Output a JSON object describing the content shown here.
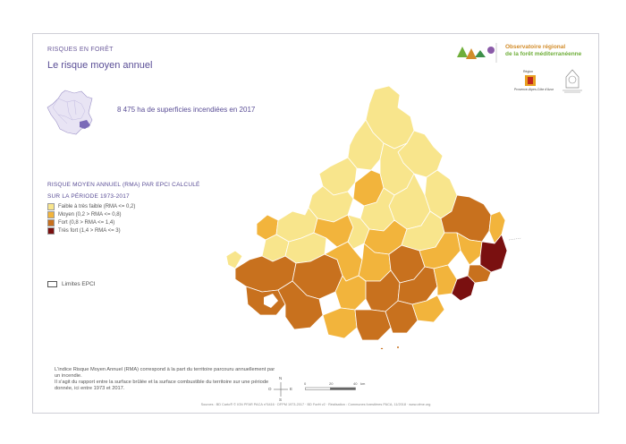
{
  "header": {
    "kicker": "RISQUES EN FORÊT",
    "title": "Le risque moyen annuel"
  },
  "observatory": {
    "line1": "Observatoire régional",
    "line2": "de la forêt méditerranéenne"
  },
  "partners": {
    "region_label": "Région",
    "region_name": "Provence-Alpes-Côte d'Azur"
  },
  "stat": "8 475 ha de superficies incendiées en 2017",
  "legend": {
    "title_line1": "RISQUE MOYEN ANNUEL (RMA) PAR EPCI CALCULÉ",
    "title_line2": "SUR LA PÉRIODE 1973-2017",
    "classes": [
      {
        "label": "Faible à très faible (RMA <= 0,2)",
        "color": "#f8e58c"
      },
      {
        "label": "Moyen (0,2 > RMA <= 0,8)",
        "color": "#f2b43c"
      },
      {
        "label": "Fort (0,8 > RMA <= 1,4)",
        "color": "#c8711e"
      },
      {
        "label": "Très fort (1,4 > RMA <= 3)",
        "color": "#7a1010"
      }
    ],
    "epci_label": "Limites EPCI"
  },
  "note": {
    "p1": "L'indice Risque Moyen Annuel (RMA) correspond à la part du territoire parcouru annuellement par un incendie.",
    "p2": "Il s'agit du rapport entre la surface brûlée et la surface combustible du territoire sur une période donnée, ici entre 1973 et 2017."
  },
  "compass": {
    "n": "N",
    "s": "S",
    "e": "E",
    "o": "O"
  },
  "scale": {
    "ticks": [
      "0",
      "20",
      "40"
    ],
    "unit": "km"
  },
  "sources": "Sources : BD Carto® © IGN PFAR PACA n°6416 · DFPM 1973-2017 · BD Forêt v2 · Réalisation : Communes forestières PACA, 11/2018 · www.ofme.org"
}
